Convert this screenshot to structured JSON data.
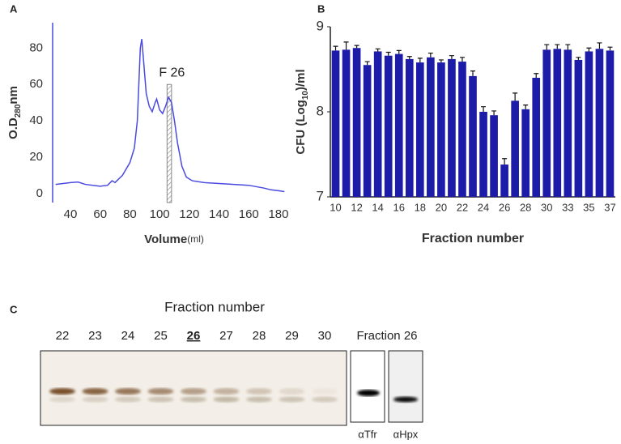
{
  "chart_data": [
    {
      "type": "line",
      "panel": "A",
      "ylabel": [
        "O.D",
        "280",
        "nm"
      ],
      "xlabel": [
        "Volume",
        "(ml)"
      ],
      "annotation": "F 26",
      "highlight": [
        105,
        108,
        60
      ],
      "x": [
        30,
        40,
        45,
        50,
        60,
        65,
        68,
        70,
        75,
        80,
        83,
        85,
        86,
        87,
        88,
        89,
        91,
        93,
        95,
        97,
        98,
        100,
        102,
        104,
        106,
        108,
        110,
        112,
        115,
        118,
        122,
        130,
        140,
        150,
        160,
        170,
        175,
        180,
        184
      ],
      "values": [
        5,
        6,
        6.3,
        5,
        4,
        4.5,
        7,
        6,
        10,
        17,
        25,
        40,
        60,
        80,
        85,
        75,
        55,
        48,
        45,
        50,
        52,
        46,
        44,
        48,
        53,
        50,
        40,
        28,
        15,
        9,
        7,
        6,
        5.5,
        5,
        4.5,
        3,
        2,
        1.5,
        1
      ],
      "color": "#4a4ae0",
      "xlim": [
        28,
        186
      ],
      "xticks": [
        40,
        60,
        80,
        100,
        120,
        140,
        160,
        180
      ],
      "ylim": [
        -5,
        94
      ],
      "yticks": [
        0,
        20,
        40,
        60,
        80
      ]
    },
    {
      "type": "bar",
      "panel": "B",
      "ylabel": [
        "CFU (Log",
        "10",
        ")/ml"
      ],
      "xlabel": "Fraction number",
      "categories": [
        10,
        null,
        12,
        null,
        14,
        null,
        16,
        null,
        18,
        null,
        20,
        null,
        22,
        null,
        24,
        null,
        26,
        null,
        28,
        null,
        30,
        null,
        33,
        null,
        35,
        null,
        37
      ],
      "values": [
        8.72,
        8.73,
        8.75,
        8.55,
        8.71,
        8.66,
        8.68,
        8.62,
        8.58,
        8.64,
        8.58,
        8.62,
        8.59,
        8.42,
        8.0,
        7.96,
        7.38,
        8.13,
        8.03,
        8.4,
        8.73,
        8.74,
        8.73,
        8.61,
        8.71,
        8.74,
        8.72
      ],
      "errors": [
        0.05,
        0.09,
        0.03,
        0.04,
        0.03,
        0.04,
        0.04,
        0.03,
        0.05,
        0.05,
        0.03,
        0.04,
        0.05,
        0.06,
        0.06,
        0.05,
        0.07,
        0.09,
        0.05,
        0.05,
        0.06,
        0.05,
        0.06,
        0.03,
        0.04,
        0.07,
        0.04
      ],
      "color": "#1c1ca8",
      "ylim": [
        7,
        9
      ],
      "yticks": [
        7,
        8,
        9
      ]
    }
  ],
  "gel": {
    "panel": "C",
    "title": "Fraction number",
    "lanes": [
      "22",
      "23",
      "24",
      "25",
      "26",
      "27",
      "28",
      "29",
      "30"
    ],
    "highlight_lane": 4,
    "side_title": "Fraction 26",
    "blots": [
      "αTfr",
      "αHpx"
    ]
  }
}
